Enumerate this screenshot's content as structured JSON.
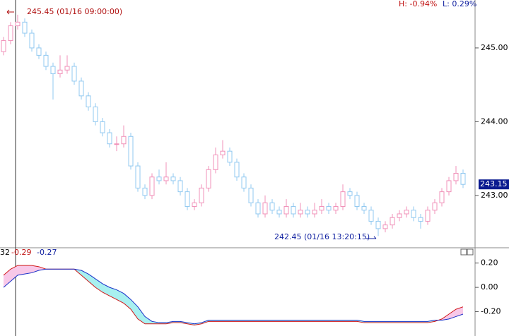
{
  "chart_data": [
    {
      "type": "candlestick",
      "up_color": "#f090b8",
      "down_color": "#90c8f0",
      "ylim": [
        242.3,
        245.65
      ],
      "yticks": [
        {
          "value": 245,
          "label": "245.00"
        },
        {
          "value": 244,
          "label": "244.00"
        },
        {
          "value": 243,
          "label": "243.00"
        }
      ],
      "high_note": "245.45 (01/16 09:00:00)",
      "low_note": "242.45 (01/16 13:20:15)",
      "high_pct": "H: -0.94%",
      "low_pct": "L: 0.29%",
      "ohlc": [
        [
          244.95,
          245.15,
          244.9,
          245.1
        ],
        [
          245.1,
          245.35,
          245.05,
          245.3
        ],
        [
          245.3,
          245.45,
          245.25,
          245.35
        ],
        [
          245.35,
          245.4,
          245.15,
          245.2
        ],
        [
          245.2,
          245.25,
          244.95,
          245.0
        ],
        [
          245.0,
          245.05,
          244.85,
          244.9
        ],
        [
          244.9,
          244.95,
          244.7,
          244.75
        ],
        [
          244.75,
          244.8,
          244.3,
          244.65
        ],
        [
          244.65,
          244.9,
          244.6,
          244.7
        ],
        [
          244.7,
          244.9,
          244.65,
          244.75
        ],
        [
          244.75,
          244.8,
          244.5,
          244.55
        ],
        [
          244.55,
          244.6,
          244.3,
          244.35
        ],
        [
          244.35,
          244.4,
          244.15,
          244.2
        ],
        [
          244.2,
          244.25,
          243.95,
          244.0
        ],
        [
          244.0,
          244.05,
          243.8,
          243.85
        ],
        [
          243.85,
          243.9,
          243.65,
          243.7
        ],
        [
          243.7,
          243.8,
          243.6,
          243.7
        ],
        [
          243.7,
          243.95,
          243.65,
          243.8
        ],
        [
          243.8,
          243.85,
          243.35,
          243.4
        ],
        [
          243.4,
          243.45,
          243.05,
          243.1
        ],
        [
          243.1,
          243.15,
          242.95,
          243.0
        ],
        [
          243.0,
          243.3,
          242.95,
          243.25
        ],
        [
          243.25,
          243.35,
          243.15,
          243.2
        ],
        [
          243.2,
          243.45,
          243.15,
          243.25
        ],
        [
          243.25,
          243.3,
          243.15,
          243.2
        ],
        [
          243.2,
          243.25,
          243.0,
          243.05
        ],
        [
          243.05,
          243.1,
          242.8,
          242.85
        ],
        [
          242.85,
          242.95,
          242.8,
          242.9
        ],
        [
          242.9,
          243.15,
          242.85,
          243.1
        ],
        [
          243.1,
          243.4,
          243.05,
          243.35
        ],
        [
          243.35,
          243.65,
          243.3,
          243.55
        ],
        [
          243.55,
          243.75,
          243.5,
          243.6
        ],
        [
          243.6,
          243.65,
          243.4,
          243.45
        ],
        [
          243.45,
          243.5,
          243.2,
          243.25
        ],
        [
          243.25,
          243.3,
          243.05,
          243.1
        ],
        [
          243.1,
          243.15,
          242.85,
          242.9
        ],
        [
          242.9,
          242.95,
          242.7,
          242.75
        ],
        [
          242.75,
          243.0,
          242.7,
          242.9
        ],
        [
          242.9,
          242.95,
          242.75,
          242.8
        ],
        [
          242.8,
          242.85,
          242.7,
          242.75
        ],
        [
          242.75,
          242.95,
          242.7,
          242.85
        ],
        [
          242.85,
          242.9,
          242.7,
          242.75
        ],
        [
          242.75,
          242.9,
          242.7,
          242.8
        ],
        [
          242.8,
          242.85,
          242.7,
          242.75
        ],
        [
          242.75,
          242.9,
          242.7,
          242.8
        ],
        [
          242.8,
          242.95,
          242.75,
          242.85
        ],
        [
          242.85,
          242.9,
          242.75,
          242.8
        ],
        [
          242.8,
          242.9,
          242.75,
          242.85
        ],
        [
          242.85,
          243.15,
          242.8,
          243.05
        ],
        [
          243.05,
          243.1,
          242.95,
          243.0
        ],
        [
          243.0,
          243.05,
          242.8,
          242.85
        ],
        [
          242.85,
          242.9,
          242.75,
          242.8
        ],
        [
          242.8,
          242.85,
          242.6,
          242.65
        ],
        [
          242.65,
          242.7,
          242.45,
          242.55
        ],
        [
          242.55,
          242.65,
          242.5,
          242.6
        ],
        [
          242.6,
          242.75,
          242.55,
          242.7
        ],
        [
          242.7,
          242.8,
          242.65,
          242.75
        ],
        [
          242.75,
          242.85,
          242.7,
          242.8
        ],
        [
          242.8,
          242.85,
          242.65,
          242.7
        ],
        [
          242.7,
          242.75,
          242.55,
          242.65
        ],
        [
          242.65,
          242.85,
          242.6,
          242.8
        ],
        [
          242.8,
          242.95,
          242.75,
          242.9
        ],
        [
          242.9,
          243.1,
          242.85,
          243.05
        ],
        [
          243.05,
          243.25,
          243.0,
          243.2
        ],
        [
          243.2,
          243.4,
          243.15,
          243.3
        ],
        [
          243.3,
          243.35,
          243.1,
          243.15
        ]
      ]
    },
    {
      "type": "line",
      "indicator_label": "32",
      "ylim": [
        -0.4,
        0.32
      ],
      "yticks": [
        {
          "value": 0.2,
          "label": "0.20"
        },
        {
          "value": 0,
          "label": "0.00"
        },
        {
          "value": -0.2,
          "label": "-0.20"
        }
      ],
      "above_fill": "#f8c8e8",
      "below_fill": "#a8f0f0",
      "series": [
        {
          "color": "#d01818",
          "readout": -0.29,
          "values": [
            0.1,
            0.15,
            0.18,
            0.18,
            0.18,
            0.17,
            0.15,
            0.15,
            0.15,
            0.15,
            0.15,
            0.1,
            0.05,
            0.0,
            -0.04,
            -0.07,
            -0.1,
            -0.13,
            -0.18,
            -0.26,
            -0.3,
            -0.3,
            -0.3,
            -0.3,
            -0.29,
            -0.29,
            -0.3,
            -0.31,
            -0.3,
            -0.28,
            -0.28,
            -0.28,
            -0.28,
            -0.28,
            -0.28,
            -0.28,
            -0.28,
            -0.28,
            -0.28,
            -0.28,
            -0.28,
            -0.28,
            -0.28,
            -0.28,
            -0.28,
            -0.28,
            -0.28,
            -0.28,
            -0.28,
            -0.28,
            -0.28,
            -0.29,
            -0.29,
            -0.29,
            -0.29,
            -0.29,
            -0.29,
            -0.29,
            -0.29,
            -0.29,
            -0.29,
            -0.28,
            -0.26,
            -0.22,
            -0.18,
            -0.16
          ]
        },
        {
          "color": "#1830c8",
          "readout": -0.27,
          "values": [
            0.0,
            0.05,
            0.1,
            0.11,
            0.12,
            0.14,
            0.15,
            0.15,
            0.15,
            0.15,
            0.15,
            0.14,
            0.11,
            0.07,
            0.03,
            0.0,
            -0.02,
            -0.05,
            -0.1,
            -0.16,
            -0.24,
            -0.28,
            -0.29,
            -0.29,
            -0.28,
            -0.28,
            -0.29,
            -0.3,
            -0.29,
            -0.27,
            -0.27,
            -0.27,
            -0.27,
            -0.27,
            -0.27,
            -0.27,
            -0.27,
            -0.27,
            -0.27,
            -0.27,
            -0.27,
            -0.27,
            -0.27,
            -0.27,
            -0.27,
            -0.27,
            -0.27,
            -0.27,
            -0.27,
            -0.27,
            -0.27,
            -0.28,
            -0.28,
            -0.28,
            -0.28,
            -0.28,
            -0.28,
            -0.28,
            -0.28,
            -0.28,
            -0.28,
            -0.27,
            -0.27,
            -0.26,
            -0.24,
            -0.22
          ]
        }
      ]
    }
  ]
}
